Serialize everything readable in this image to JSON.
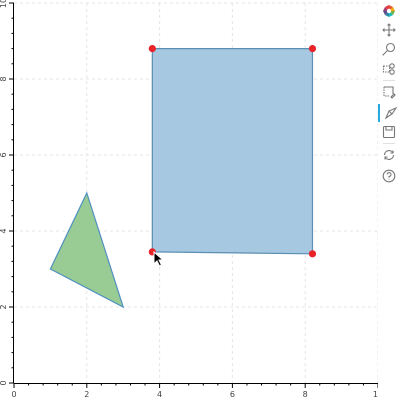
{
  "plot": {
    "x_range": [
      0,
      10
    ],
    "y_range": [
      0,
      10
    ],
    "x_ticks": [
      0,
      2,
      4,
      6,
      8,
      10
    ],
    "y_ticks": [
      0,
      2,
      4,
      6,
      8,
      10
    ],
    "x_tick_labels": [
      "0",
      "2",
      "4",
      "6",
      "8",
      "10"
    ],
    "y_tick_labels": [
      "0",
      "2",
      "4",
      "6",
      "8",
      "10"
    ],
    "grid": true
  },
  "shapes": [
    {
      "name": "rectangle-polygon",
      "points": [
        [
          3.8,
          8.8
        ],
        [
          8.2,
          8.8
        ],
        [
          8.2,
          3.4
        ],
        [
          3.8,
          3.45
        ]
      ],
      "fill": "#a6c8e0",
      "stroke": "#5b8fb3"
    },
    {
      "name": "triangle-polygon",
      "points": [
        [
          2.0,
          5.0
        ],
        [
          3.0,
          2.0
        ],
        [
          1.0,
          3.0
        ]
      ],
      "fill": "#98cc94",
      "stroke": "#4f8fbf"
    }
  ],
  "vertex_handles": {
    "color": "#e8232a",
    "points": [
      [
        3.8,
        8.8
      ],
      [
        8.2,
        8.8
      ],
      [
        8.2,
        3.4
      ],
      [
        3.8,
        3.45
      ]
    ]
  },
  "toolbar": {
    "tools": [
      {
        "name": "bokeh-logo-icon",
        "tooltip": "Bokeh"
      },
      {
        "name": "pan-tool-icon",
        "tooltip": "Pan"
      },
      {
        "name": "wheel-zoom-tool-icon",
        "tooltip": "Wheel Zoom"
      },
      {
        "name": "box-select-tool-icon",
        "tooltip": "Box Select"
      },
      {
        "name": "poly-draw-tool-icon",
        "tooltip": "Polygon Draw"
      },
      {
        "name": "poly-edit-tool-icon",
        "tooltip": "Polygon Edit",
        "active": true
      },
      {
        "name": "save-tool-icon",
        "tooltip": "Save"
      },
      {
        "name": "reset-tool-icon",
        "tooltip": "Reset"
      },
      {
        "name": "help-tool-icon",
        "tooltip": "Help"
      }
    ],
    "accent_color": "#26aae1"
  }
}
